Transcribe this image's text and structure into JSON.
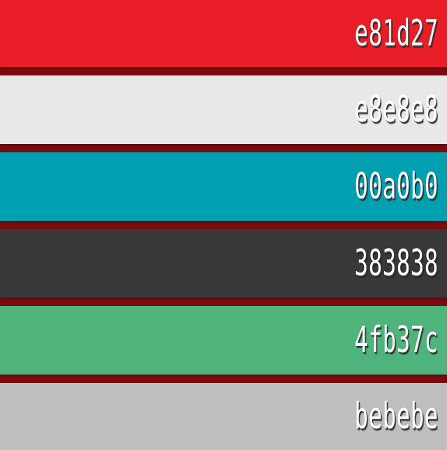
{
  "separator_color": "#7a0b0f",
  "swatches": [
    {
      "hex": "e81d27",
      "color": "#e81d27"
    },
    {
      "hex": "e8e8e8",
      "color": "#e8e8e8"
    },
    {
      "hex": "00a0b0",
      "color": "#00a0b0"
    },
    {
      "hex": "383838",
      "color": "#383838"
    },
    {
      "hex": "4fb37c",
      "color": "#4fb37c"
    },
    {
      "hex": "bebebe",
      "color": "#bebebe"
    }
  ]
}
